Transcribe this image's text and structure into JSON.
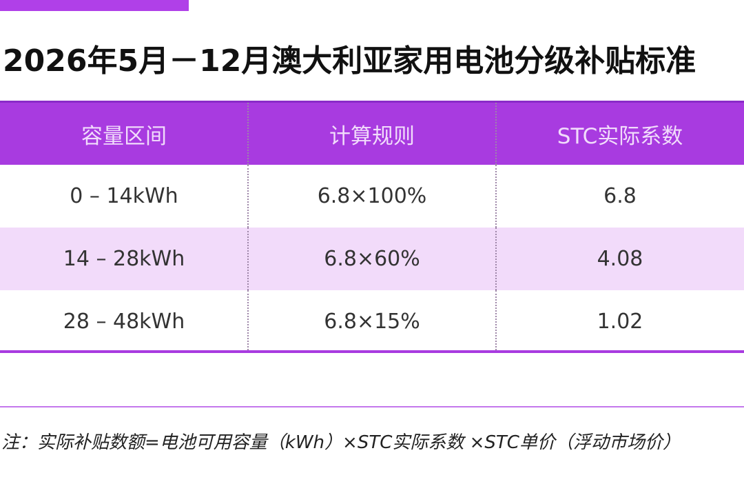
{
  "title": "2026年5月－12月澳大利亚家用电池分级补贴标准",
  "table": {
    "headers": [
      "容量区间",
      "计算规则",
      "STC实际系数"
    ],
    "rows": [
      [
        "0 – 14kWh",
        "6.8×100%",
        "6.8"
      ],
      [
        "14 – 28kWh",
        "6.8×60%",
        "4.08"
      ],
      [
        "28 – 48kWh",
        "6.8×15%",
        "1.02"
      ]
    ]
  },
  "note": "注：实际补贴数额=电池可用容量（kWh）×STC实际系数 ×STC单价（浮动市场价）",
  "colors": {
    "accent": "#a83be0",
    "alt_row": "#f2dbfa",
    "header_text": "#f1dcfb"
  }
}
